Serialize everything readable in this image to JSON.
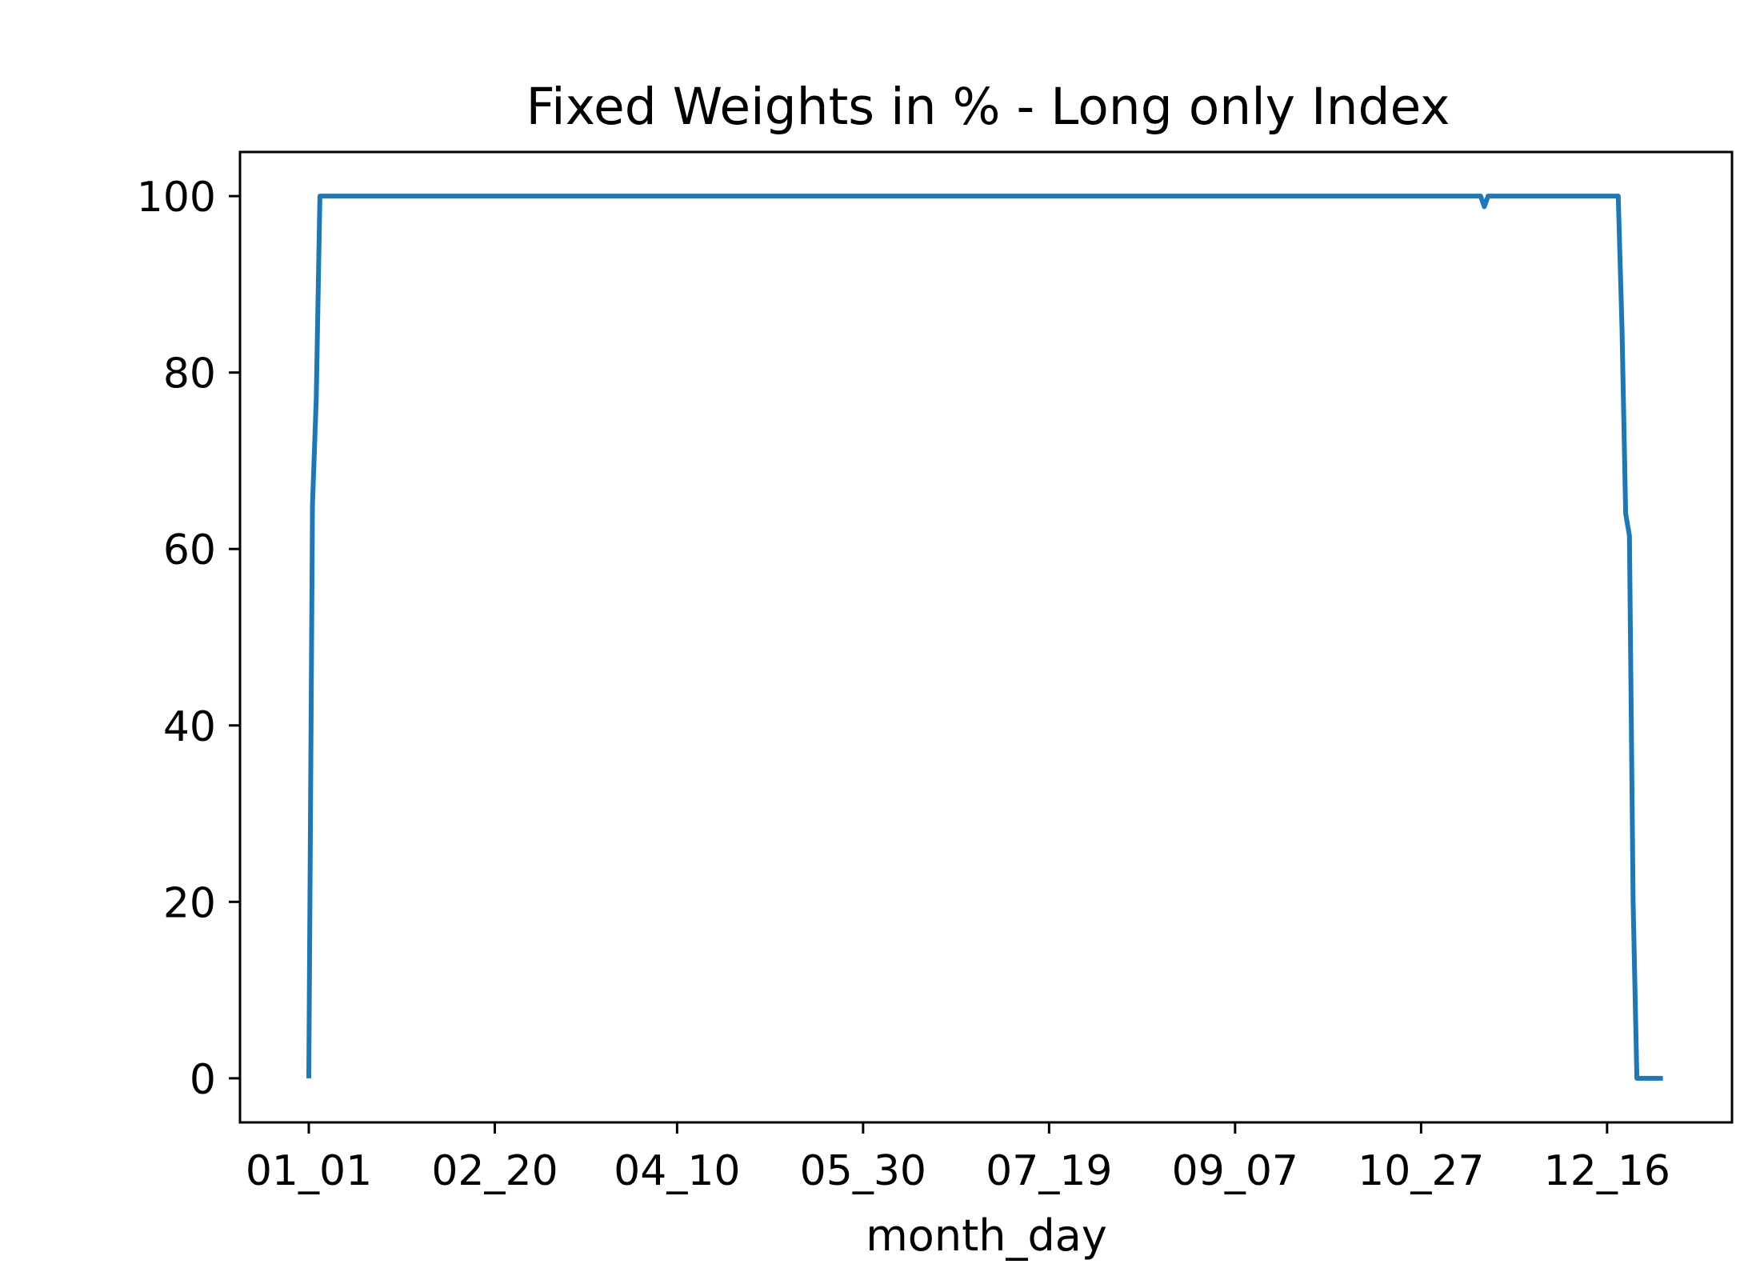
{
  "chart_data": {
    "type": "line",
    "title": "Fixed Weights in % - Long only Index",
    "xlabel": "month_day",
    "ylabel": "",
    "x_is_day_of_year_categorical": true,
    "xticks": [
      "01_01",
      "02_20",
      "04_10",
      "05_30",
      "07_19",
      "09_07",
      "10_27",
      "12_16"
    ],
    "yticks": [
      "0",
      "20",
      "40",
      "60",
      "80",
      "100"
    ],
    "ylim": [
      -5,
      105
    ],
    "grid": false,
    "legend": "none",
    "series": [
      {
        "color": "#1f77b4",
        "points": [
          {
            "x": "01_01",
            "y": 0
          },
          {
            "x": "01_02",
            "y": 65
          },
          {
            "x": "01_03",
            "y": 77
          },
          {
            "x": "01_04",
            "y": 100
          },
          {
            "x": "11_12",
            "y": 100
          },
          {
            "x": "11_13",
            "y": 98.8
          },
          {
            "x": "11_14",
            "y": 100
          },
          {
            "x": "12_19",
            "y": 100
          },
          {
            "x": "12_20",
            "y": 85
          },
          {
            "x": "12_21",
            "y": 64
          },
          {
            "x": "12_22",
            "y": 61.5
          },
          {
            "x": "12_23",
            "y": 20
          },
          {
            "x": "12_24",
            "y": 0
          },
          {
            "x": "12_31",
            "y": 0
          }
        ]
      }
    ]
  }
}
